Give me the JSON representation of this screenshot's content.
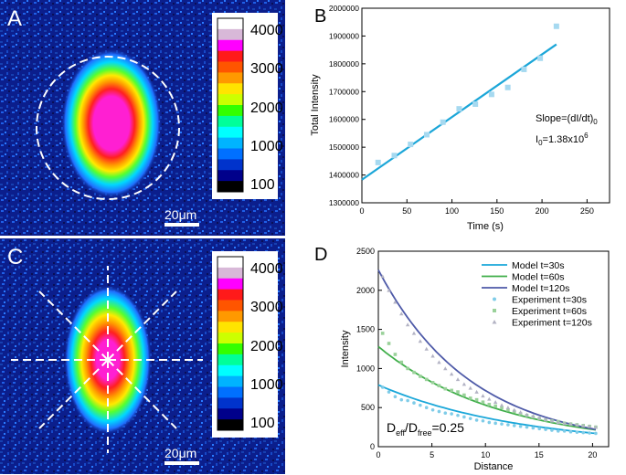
{
  "figure": {
    "panels": {
      "A": {
        "label": "A",
        "scale_bar": "20μm"
      },
      "B": {
        "label": "B"
      },
      "C": {
        "label": "C",
        "scale_bar": "20μm"
      },
      "D": {
        "label": "D"
      }
    },
    "colorbar": {
      "tick_labels": [
        "4000",
        "3000",
        "2000",
        "1000",
        "100"
      ],
      "colors": [
        "#ffffff",
        "#d8b8d8",
        "#ff00ff",
        "#ff1a1a",
        "#ff5500",
        "#ff9900",
        "#ffe400",
        "#ccff00",
        "#33ff00",
        "#00ff99",
        "#00ffff",
        "#00b4ff",
        "#0070ff",
        "#0033cc",
        "#00008b",
        "#000000"
      ]
    },
    "image_colors": {
      "background": "#0b1e8c",
      "noise": "#1f5fe6",
      "core": "#ff1fd2"
    }
  },
  "chart_data": [
    {
      "panel": "B",
      "type": "scatter",
      "ylabel": "Total Intensity",
      "xlabel": "Time (s)",
      "xlim": [
        0,
        275
      ],
      "ylim": [
        1300000,
        2000000
      ],
      "x_ticks": [
        0,
        50,
        100,
        150,
        200,
        250
      ],
      "x_tick_labels": [
        "0",
        "50",
        "100",
        "150",
        "200",
        "250"
      ],
      "y_ticks": [
        1300000,
        1400000,
        1500000,
        1600000,
        1700000,
        1800000,
        1900000,
        2000000
      ],
      "y_tick_labels": [
        "1300000",
        "1400000",
        "1500000",
        "1600000",
        "1700000",
        "1800000",
        "1900000",
        "2000000"
      ],
      "points": {
        "x": [
          18,
          36,
          54,
          72,
          90,
          108,
          126,
          144,
          162,
          180,
          198,
          216
        ],
        "y": [
          1445000,
          1470000,
          1510000,
          1545000,
          1590000,
          1638000,
          1655000,
          1690000,
          1715000,
          1780000,
          1820000,
          1935000
        ],
        "color": "#a6d9f0"
      },
      "fit": {
        "x": [
          0,
          216
        ],
        "y": [
          1383000,
          1870000
        ],
        "color": "#1ba6d8"
      },
      "annotation_slope": "Slope=(dI/dt)",
      "annotation_slope_sub": "0",
      "annotation_i0": "I",
      "annotation_i0_sub": "0",
      "annotation_i0_value": "=1.38x10",
      "annotation_i0_sup": "6"
    },
    {
      "panel": "D",
      "type": "line",
      "ylabel": "Intensity",
      "xlabel": "Distance",
      "xlim": [
        0,
        21.5
      ],
      "ylim": [
        0,
        2500
      ],
      "x_ticks": [
        0,
        5,
        10,
        15,
        20
      ],
      "x_tick_labels": [
        "0",
        "5",
        "10",
        "15",
        "20"
      ],
      "y_ticks": [
        0,
        500,
        1000,
        1500,
        2000,
        2500
      ],
      "y_tick_labels": [
        "0",
        "500",
        "1000",
        "1500",
        "2000",
        "2500"
      ],
      "series": [
        {
          "name": "Model t=30s",
          "kind": "line",
          "color": "#1aa7d9",
          "start": 790,
          "end": 170
        },
        {
          "name": "Model t=60s",
          "kind": "line",
          "color": "#3fae49",
          "start": 1280,
          "end": 215
        },
        {
          "name": "Model t=120s",
          "kind": "line",
          "color": "#4e5aa8",
          "start": 2260,
          "end": 220
        },
        {
          "name": "Experiment t=30s",
          "kind": "scatter",
          "marker": "dot",
          "color": "#7fcce8",
          "values": [
            760,
            700,
            640,
            600,
            590,
            560,
            530,
            500,
            470,
            450,
            430,
            420,
            400,
            380,
            360,
            340,
            330,
            310,
            300,
            290,
            280,
            270,
            260,
            250,
            240,
            230,
            220,
            210,
            200,
            200,
            190,
            185,
            180,
            175,
            170
          ]
        },
        {
          "name": "Experiment t=60s",
          "kind": "scatter",
          "marker": "square",
          "color": "#9ad19a",
          "values": [
            1450,
            1320,
            1180,
            1080,
            1000,
            950,
            900,
            860,
            820,
            780,
            740,
            720,
            700,
            660,
            620,
            600,
            570,
            540,
            520,
            500,
            470,
            450,
            420,
            400,
            380,
            360,
            340,
            330,
            320,
            300,
            290,
            280,
            270,
            260,
            250
          ]
        },
        {
          "name": "Experiment t=120s",
          "kind": "scatter",
          "marker": "triangle",
          "color": "#b3b3c4",
          "values": [
            2180,
            2000,
            1850,
            1700,
            1560,
            1450,
            1350,
            1250,
            1160,
            1080,
            1000,
            930,
            860,
            800,
            750,
            700,
            650,
            610,
            570,
            530,
            500,
            470,
            440,
            410,
            390,
            370,
            350,
            330,
            310,
            300,
            290,
            280,
            270,
            260,
            250
          ]
        }
      ],
      "annotation_main": "D",
      "annotation_eff": "eff",
      "annotation_div": "/D",
      "annotation_free": "free",
      "annotation_value": "=0.25"
    }
  ]
}
